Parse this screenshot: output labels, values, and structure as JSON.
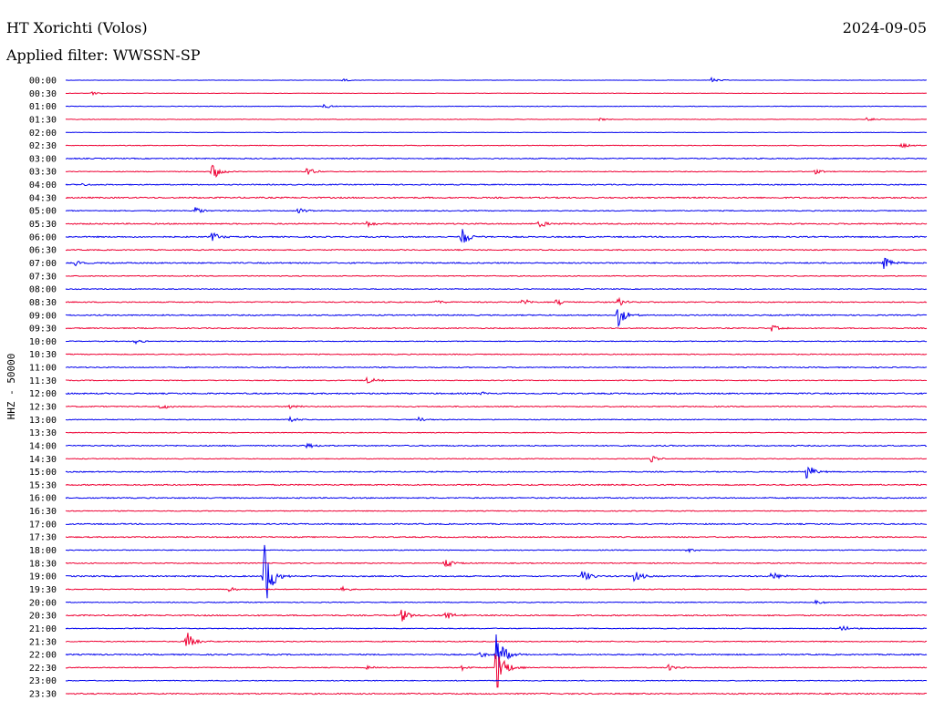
{
  "chart_data": {
    "type": "line",
    "title": "HT Xorichti (Volos)",
    "subtitle": "Applied filter: WWSSN-SP",
    "date": "2024-09-05",
    "ylabel": "HHZ - 50000",
    "colors": {
      "even": "#0000ee",
      "odd": "#ee0033"
    },
    "rows": [
      {
        "label": "00:00",
        "noise": 0.4,
        "events": [
          {
            "t": 0.32,
            "amp": 2
          },
          {
            "t": 0.75,
            "amp": 3
          }
        ]
      },
      {
        "label": "00:30",
        "noise": 0.4,
        "events": [
          {
            "t": 0.03,
            "amp": 2
          }
        ]
      },
      {
        "label": "01:00",
        "noise": 0.6,
        "events": [
          {
            "t": 0.3,
            "amp": 3
          }
        ]
      },
      {
        "label": "01:30",
        "noise": 0.6,
        "events": [
          {
            "t": 0.62,
            "amp": 2
          },
          {
            "t": 0.93,
            "amp": 2
          }
        ]
      },
      {
        "label": "02:00",
        "noise": 0.4,
        "events": []
      },
      {
        "label": "02:30",
        "noise": 0.7,
        "events": [
          {
            "t": 0.97,
            "amp": 3
          }
        ]
      },
      {
        "label": "03:00",
        "noise": 1.1,
        "events": []
      },
      {
        "label": "03:30",
        "noise": 0.8,
        "events": [
          {
            "t": 0.17,
            "amp": 10
          },
          {
            "t": 0.28,
            "amp": 5
          },
          {
            "t": 0.87,
            "amp": 3
          }
        ]
      },
      {
        "label": "04:00",
        "noise": 1.1,
        "events": [
          {
            "t": 0.02,
            "amp": 2
          }
        ]
      },
      {
        "label": "04:30",
        "noise": 1.4,
        "events": []
      },
      {
        "label": "05:00",
        "noise": 1.0,
        "events": [
          {
            "t": 0.15,
            "amp": 5
          },
          {
            "t": 0.27,
            "amp": 3
          }
        ]
      },
      {
        "label": "05:30",
        "noise": 1.3,
        "events": [
          {
            "t": 0.55,
            "amp": 6
          },
          {
            "t": 0.35,
            "amp": 4
          }
        ]
      },
      {
        "label": "06:00",
        "noise": 1.3,
        "events": [
          {
            "t": 0.17,
            "amp": 6
          },
          {
            "t": 0.46,
            "amp": 12
          }
        ]
      },
      {
        "label": "06:30",
        "noise": 1.1,
        "events": []
      },
      {
        "label": "07:00",
        "noise": 1.3,
        "events": [
          {
            "t": 0.01,
            "amp": 3
          },
          {
            "t": 0.95,
            "amp": 8
          }
        ]
      },
      {
        "label": "07:30",
        "noise": 0.9,
        "events": []
      },
      {
        "label": "08:00",
        "noise": 0.9,
        "events": []
      },
      {
        "label": "08:30",
        "noise": 1.1,
        "events": [
          {
            "t": 0.43,
            "amp": 3
          },
          {
            "t": 0.53,
            "amp": 4
          },
          {
            "t": 0.57,
            "amp": 4
          },
          {
            "t": 0.64,
            "amp": 6
          }
        ]
      },
      {
        "label": "09:00",
        "noise": 1.2,
        "events": [
          {
            "t": 0.64,
            "amp": 16
          }
        ]
      },
      {
        "label": "09:30",
        "noise": 1.1,
        "events": [
          {
            "t": 0.82,
            "amp": 4
          }
        ]
      },
      {
        "label": "10:00",
        "noise": 0.9,
        "events": [
          {
            "t": 0.08,
            "amp": 3
          }
        ]
      },
      {
        "label": "10:30",
        "noise": 1.0,
        "events": []
      },
      {
        "label": "11:00",
        "noise": 1.1,
        "events": []
      },
      {
        "label": "11:30",
        "noise": 0.9,
        "events": [
          {
            "t": 0.35,
            "amp": 4
          }
        ]
      },
      {
        "label": "12:00",
        "noise": 1.4,
        "events": [
          {
            "t": 0.48,
            "amp": 3
          }
        ]
      },
      {
        "label": "12:30",
        "noise": 1.1,
        "events": [
          {
            "t": 0.11,
            "amp": 4
          },
          {
            "t": 0.26,
            "amp": 3
          }
        ]
      },
      {
        "label": "13:00",
        "noise": 0.9,
        "events": [
          {
            "t": 0.26,
            "amp": 3
          },
          {
            "t": 0.41,
            "amp": 3
          }
        ]
      },
      {
        "label": "13:30",
        "noise": 0.8,
        "events": []
      },
      {
        "label": "14:00",
        "noise": 1.2,
        "events": [
          {
            "t": 0.28,
            "amp": 3
          }
        ]
      },
      {
        "label": "14:30",
        "noise": 0.8,
        "events": [
          {
            "t": 0.68,
            "amp": 4
          }
        ]
      },
      {
        "label": "15:00",
        "noise": 1.1,
        "events": [
          {
            "t": 0.86,
            "amp": 10
          }
        ]
      },
      {
        "label": "15:30",
        "noise": 1.3,
        "events": []
      },
      {
        "label": "16:00",
        "noise": 1.2,
        "events": []
      },
      {
        "label": "16:30",
        "noise": 0.9,
        "events": []
      },
      {
        "label": "17:00",
        "noise": 1.3,
        "events": []
      },
      {
        "label": "17:30",
        "noise": 1.2,
        "events": []
      },
      {
        "label": "18:00",
        "noise": 0.9,
        "events": [
          {
            "t": 0.72,
            "amp": 3
          }
        ]
      },
      {
        "label": "18:30",
        "noise": 1.0,
        "events": [
          {
            "t": 0.44,
            "amp": 6
          }
        ]
      },
      {
        "label": "19:00",
        "noise": 1.3,
        "events": [
          {
            "t": 0.23,
            "amp": 42
          },
          {
            "t": 0.6,
            "amp": 8
          },
          {
            "t": 0.66,
            "amp": 7
          },
          {
            "t": 0.82,
            "amp": 6
          }
        ]
      },
      {
        "label": "19:30",
        "noise": 0.9,
        "events": [
          {
            "t": 0.19,
            "amp": 3
          },
          {
            "t": 0.32,
            "amp": 3
          }
        ]
      },
      {
        "label": "20:00",
        "noise": 0.9,
        "events": [
          {
            "t": 0.87,
            "amp": 3
          }
        ]
      },
      {
        "label": "20:30",
        "noise": 1.3,
        "events": [
          {
            "t": 0.39,
            "amp": 8
          },
          {
            "t": 0.44,
            "amp": 7
          }
        ]
      },
      {
        "label": "21:00",
        "noise": 0.9,
        "events": [
          {
            "t": 0.9,
            "amp": 4
          }
        ]
      },
      {
        "label": "21:30",
        "noise": 1.0,
        "events": [
          {
            "t": 0.14,
            "amp": 12
          }
        ]
      },
      {
        "label": "22:00",
        "noise": 1.3,
        "events": [
          {
            "t": 0.48,
            "amp": 4
          },
          {
            "t": 0.5,
            "amp": 25
          }
        ]
      },
      {
        "label": "22:30",
        "noise": 0.9,
        "events": [
          {
            "t": 0.35,
            "amp": 3
          },
          {
            "t": 0.46,
            "amp": 3
          },
          {
            "t": 0.7,
            "amp": 4
          },
          {
            "t": 0.5,
            "amp": 30
          }
        ]
      },
      {
        "label": "23:00",
        "noise": 0.9,
        "events": []
      },
      {
        "label": "23:30",
        "noise": 1.3,
        "events": []
      }
    ]
  }
}
